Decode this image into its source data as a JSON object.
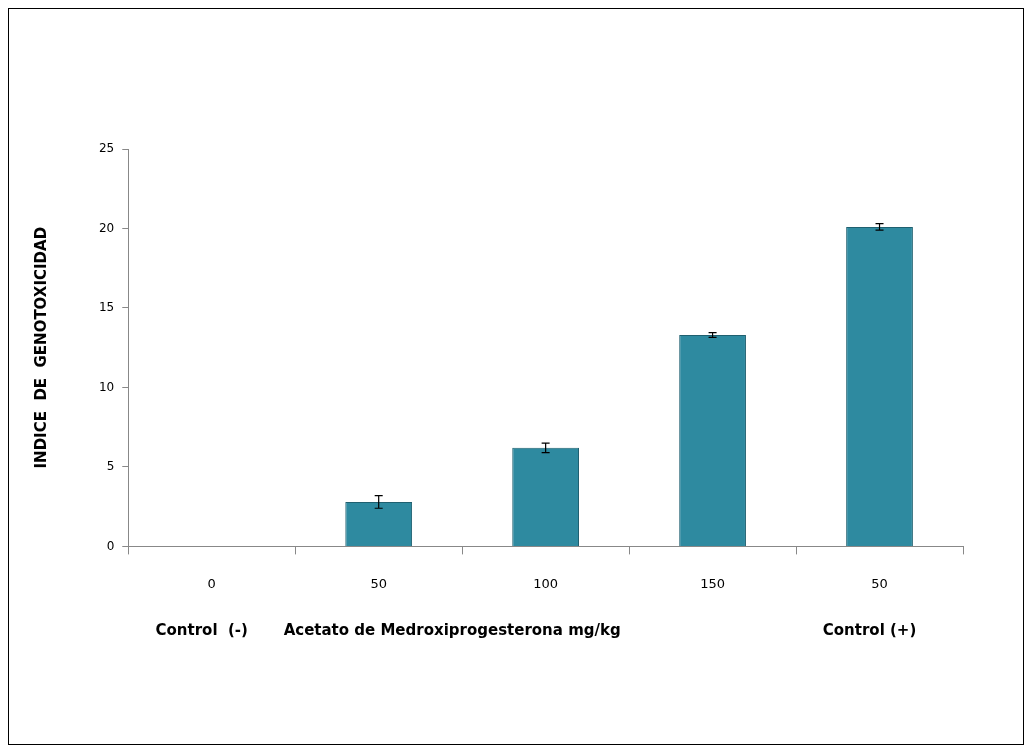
{
  "chart_data": {
    "type": "bar",
    "ylabel": "INDICE  DE  GENOTOXICIDAD",
    "xlabel": "Acetato de Medroxiprogesterona mg/kg",
    "categories": [
      "0",
      "50",
      "100",
      "150",
      "50"
    ],
    "values": [
      0,
      2.8,
      6.2,
      13.3,
      20.1
    ],
    "errors": [
      null,
      0.4,
      0.3,
      0.15,
      0.2
    ],
    "color": "#2e8aa0",
    "ylim": [
      0,
      25
    ],
    "yticks": [
      0,
      5,
      10,
      15,
      20,
      25
    ],
    "grid": false,
    "legend": false,
    "annotations": [
      "Control  (-)",
      "Control (+)"
    ]
  }
}
